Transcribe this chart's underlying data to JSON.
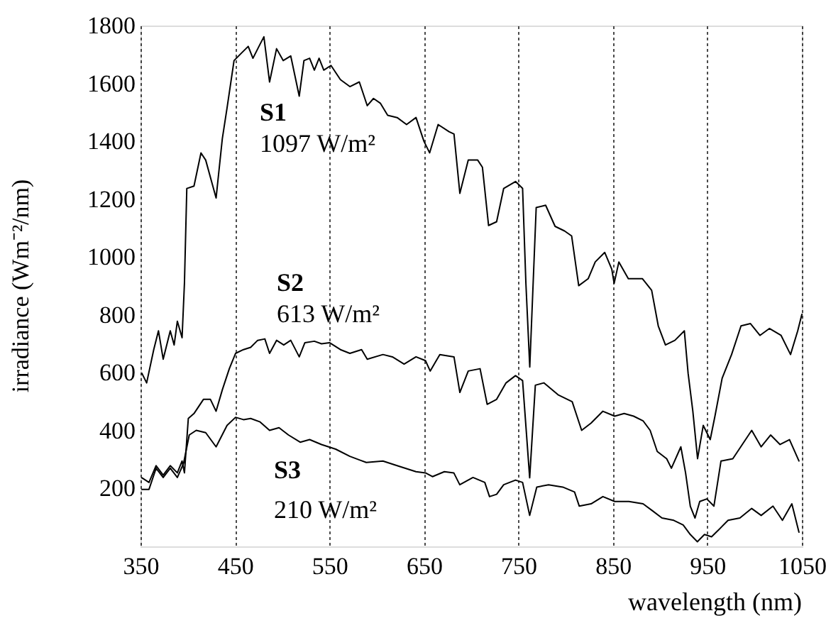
{
  "chart_data": {
    "type": "line",
    "xlabel": "wavelength (nm)",
    "ylabel": "irradiance (Wm⁻²/nm)",
    "xlim": [
      350,
      1050
    ],
    "ylim": [
      0,
      1800
    ],
    "xticks": [
      350,
      450,
      550,
      650,
      750,
      850,
      950,
      1050
    ],
    "yticks": [
      200,
      400,
      600,
      800,
      1000,
      1200,
      1400,
      1600,
      1800
    ],
    "grid": "x",
    "line_style": "solid",
    "marker": "none",
    "annotations": [
      "1097 W/m²",
      "613 W/m²",
      "210 W/m²"
    ],
    "series": [
      {
        "name": "S1",
        "color": "#000000",
        "x": [
          351.5,
          356.5,
          364,
          369,
          374,
          381.5,
          385.6,
          389,
          394,
          396.5,
          399,
          406.6,
          414,
          419,
          430,
          436.6,
          441.6,
          449,
          456.6,
          464,
          469,
          476.6,
          480.6,
          486.6,
          494,
          501,
          509,
          518,
          523,
          529,
          534,
          539,
          544,
          551.6,
          561.6,
          571.6,
          581.6,
          590,
          596.6,
          604,
          611.6,
          621.6,
          631.6,
          641.6,
          646.6,
          650,
          656,
          665,
          676.6,
          681.8,
          688,
          696.9,
          706.9,
          711.9,
          718.4,
          726.9,
          734.4,
          746.9,
          754.4,
          757.9,
          762,
          768.8,
          778.8,
          788.8,
          798.8,
          806.3,
          813.8,
          823.8,
          831.3,
          841.3,
          848.8,
          851.3,
          856.3,
          866.3,
          881.3,
          891,
          898,
          905.6,
          915.6,
          925.6,
          929.6,
          934.6,
          939.6,
          945.6,
          953,
          958,
          965.6,
          975.6,
          985.6,
          995.6,
          1005.6,
          1015.6,
          1028,
          1038,
          1045.6,
          1050
        ],
        "values": [
          598,
          565,
          680,
          745,
          647,
          745,
          696,
          778,
          721,
          909,
          1237,
          1245,
          1360,
          1335,
          1204,
          1409,
          1515,
          1679,
          1704,
          1728,
          1687,
          1736,
          1761,
          1605,
          1720,
          1679,
          1695,
          1556,
          1679,
          1687,
          1646,
          1687,
          1646,
          1662,
          1613,
          1589,
          1605,
          1523,
          1548,
          1531,
          1490,
          1482,
          1458,
          1482,
          1433,
          1400,
          1360,
          1458,
          1433,
          1425,
          1220,
          1335,
          1335,
          1310,
          1109,
          1122,
          1237,
          1261,
          1237,
          909,
          620,
          1171,
          1179,
          1106,
          1090,
          1073,
          901,
          925,
          983,
          1016,
          958,
          909,
          983,
          925,
          925,
          885,
          762,
          696,
          712,
          745,
          598,
          467,
          303,
          418,
          369,
          450,
          581,
          663,
          762,
          770,
          729,
          753,
          729,
          663,
          745,
          802
        ]
      },
      {
        "name": "S2",
        "color": "#000000",
        "x": [
          351.5,
          359,
          366.5,
          374,
          381.5,
          389,
          394,
          396.5,
          400.6,
          406.6,
          416.6,
          424,
          430,
          436.6,
          444,
          450.6,
          459,
          466.6,
          474,
          481.6,
          486.6,
          494,
          501.6,
          509,
          518,
          524,
          534,
          541.6,
          550,
          561.6,
          571.6,
          584,
          590,
          606.6,
          616.6,
          629,
          641.6,
          651.6,
          656.6,
          666.8,
          681.8,
          688,
          696.9,
          709.4,
          716.9,
          726.9,
          736.9,
          746.9,
          754.4,
          761.9,
          767.9,
          776.9,
          791.9,
          806.9,
          816.9,
          826.9,
          839.4,
          851.9,
          861.9,
          871.9,
          881.9,
          889.4,
          896.9,
          906.9,
          911.9,
          921.9,
          926.9,
          931.9,
          936.9,
          941.9,
          949.4,
          956.9,
          964.4,
          976.9,
          986.9,
          996.9,
          1006.9,
          1016.9,
          1026.9,
          1036.9,
          1046.9
        ],
        "values": [
          237,
          221,
          279,
          246,
          279,
          254,
          295,
          254,
          442,
          459,
          508,
          508,
          467,
          541,
          614,
          667,
          680,
          688,
          712,
          717,
          667,
          712,
          696,
          712,
          655,
          704,
          709,
          700,
          704,
          680,
          667,
          680,
          647,
          663,
          655,
          630,
          655,
          642,
          606,
          663,
          655,
          532,
          606,
          614,
          491,
          508,
          565,
          590,
          573,
          237,
          557,
          565,
          524,
          500,
          401,
          426,
          467,
          450,
          459,
          450,
          434,
          401,
          328,
          303,
          270,
          344,
          254,
          139,
          98,
          155,
          164,
          139,
          295,
          303,
          352,
          401,
          344,
          385,
          352,
          369,
          295
        ]
      },
      {
        "name": "S3",
        "color": "#000000",
        "x": [
          351.5,
          359,
          366.5,
          374,
          381.5,
          389,
          395.6,
          401.6,
          409,
          419,
          430,
          441.6,
          450.6,
          459,
          466.6,
          476.6,
          486.6,
          496.6,
          506.6,
          519,
          529,
          541.6,
          556.6,
          571.6,
          589,
          606.6,
          621.6,
          641.6,
          651.6,
          659,
          671.6,
          681.6,
          687.9,
          701.9,
          714.4,
          719.4,
          726.9,
          734.4,
          746.9,
          754.4,
          761.9,
          769.4,
          781.9,
          796.9,
          809.4,
          814.4,
          826.9,
          839.4,
          851.9,
          866.9,
          881.9,
          891.9,
          901.9,
          914.4,
          924.4,
          931.9,
          939.4,
          946.9,
          954.4,
          961.9,
          971.9,
          984.4,
          996.9,
          1006.9,
          1019.4,
          1029.4,
          1039.4,
          1046.9
        ],
        "values": [
          197,
          197,
          270,
          238,
          270,
          238,
          287,
          385,
          401,
          393,
          344,
          418,
          446,
          438,
          442,
          430,
          401,
          410,
          385,
          360,
          369,
          352,
          336,
          311,
          290,
          295,
          279,
          258,
          254,
          241,
          258,
          254,
          213,
          238,
          221,
          172,
          180,
          213,
          229,
          221,
          107,
          205,
          213,
          205,
          188,
          139,
          147,
          172,
          155,
          155,
          147,
          123,
          98,
          90,
          74,
          41,
          16,
          41,
          33,
          57,
          90,
          98,
          131,
          107,
          139,
          90,
          147,
          49
        ]
      }
    ]
  }
}
